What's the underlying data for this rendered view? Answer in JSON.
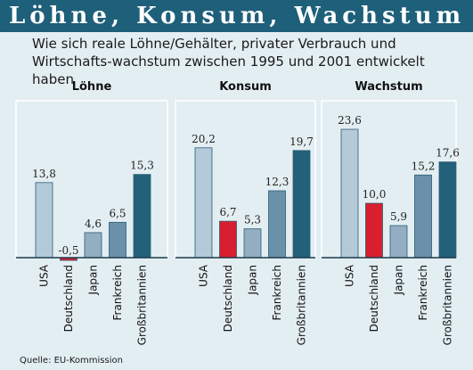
{
  "header": {
    "title": "Löhne, Konsum, Wachstum",
    "subtitle": "Wie sich reale Löhne/Gehälter, privater Verbrauch und Wirtschafts-wachstum zwischen 1995 und 2001 entwickelt haben"
  },
  "source": "Quelle: EU-Kommission",
  "colors": [
    "#b5cad9",
    "#d81f2f",
    "#93aec3",
    "#6b91aa",
    "#236079"
  ],
  "chart_data": [
    {
      "type": "bar",
      "title": "Löhne",
      "categories": [
        "USA",
        "Deutschland",
        "Japan",
        "Frankreich",
        "Großbritannien"
      ],
      "values": [
        13.8,
        -0.5,
        4.6,
        6.5,
        15.3
      ],
      "value_labels": [
        "13,8",
        "-0,5",
        "4,6",
        "6,5",
        "15,3"
      ],
      "ylim": [
        -1,
        25
      ]
    },
    {
      "type": "bar",
      "title": "Konsum",
      "categories": [
        "USA",
        "Deutschland",
        "Japan",
        "Frankreich",
        "Großbritannien"
      ],
      "values": [
        20.2,
        6.7,
        5.3,
        12.3,
        19.7
      ],
      "value_labels": [
        "20,2",
        "6,7",
        "5,3",
        "12,3",
        "19,7"
      ],
      "ylim": [
        -1,
        25
      ]
    },
    {
      "type": "bar",
      "title": "Wachstum",
      "categories": [
        "USA",
        "Deutschland",
        "Japan",
        "Frankreich",
        "Großbritannien"
      ],
      "values": [
        23.6,
        10.0,
        5.9,
        15.2,
        17.6
      ],
      "value_labels": [
        "23,6",
        "10,0",
        "5,9",
        "15,2",
        "17,6"
      ],
      "ylim": [
        -1,
        25
      ]
    }
  ]
}
